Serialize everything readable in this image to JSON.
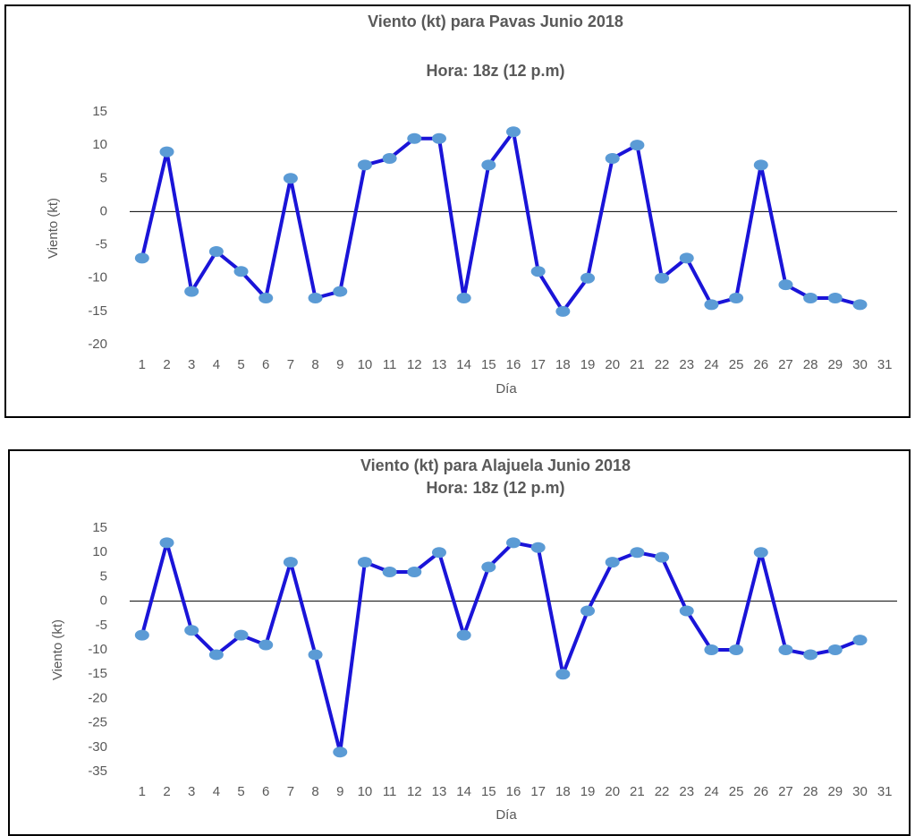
{
  "chart_data": [
    {
      "type": "line",
      "title": "Viento (kt) para Pavas Junio  2018",
      "subtitle": "Hora: 18z (12 p.m)",
      "x_label": "Día",
      "y_label": "Viento (kt)",
      "categories": [
        "1",
        "2",
        "3",
        "4",
        "5",
        "6",
        "7",
        "8",
        "9",
        "10",
        "11",
        "12",
        "13",
        "14",
        "15",
        "16",
        "17",
        "18",
        "19",
        "20",
        "21",
        "22",
        "23",
        "24",
        "25",
        "26",
        "27",
        "28",
        "29",
        "30",
        "31"
      ],
      "values": [
        -7,
        9,
        -12,
        -6,
        -9,
        -13,
        5,
        -13,
        -12,
        7,
        8,
        11,
        11,
        -13,
        7,
        12,
        -9,
        -15,
        -10,
        8,
        10,
        -10,
        -7,
        -14,
        -13,
        7,
        -11,
        -13,
        -13,
        -14,
        null
      ],
      "color": "#1a14d8",
      "marker_color": "#5b9bd5",
      "ylim": [
        -20,
        15
      ],
      "yticks": [
        -20,
        -15,
        -10,
        -5,
        0,
        5,
        10,
        15
      ],
      "grid": false
    },
    {
      "type": "line",
      "title": "Viento (kt) para Alajuela Junio 2018",
      "subtitle": "Hora: 18z (12 p.m)",
      "x_label": "Día",
      "y_label": "Viento (kt)",
      "categories": [
        "1",
        "2",
        "3",
        "4",
        "5",
        "6",
        "7",
        "8",
        "9",
        "10",
        "11",
        "12",
        "13",
        "14",
        "15",
        "16",
        "17",
        "18",
        "19",
        "20",
        "21",
        "22",
        "23",
        "24",
        "25",
        "26",
        "27",
        "28",
        "29",
        "30",
        "31"
      ],
      "values": [
        -7,
        12,
        -6,
        -11,
        -7,
        -9,
        8,
        -11,
        -31,
        8,
        6,
        6,
        10,
        -7,
        7,
        12,
        11,
        -15,
        -2,
        8,
        10,
        9,
        -2,
        -10,
        -10,
        10,
        -10,
        -11,
        -10,
        -8,
        null
      ],
      "color": "#1a14d8",
      "marker_color": "#5b9bd5",
      "ylim": [
        -35,
        15
      ],
      "yticks": [
        -35,
        -30,
        -25,
        -20,
        -15,
        -10,
        -5,
        0,
        5,
        10,
        15
      ],
      "grid": false
    }
  ]
}
